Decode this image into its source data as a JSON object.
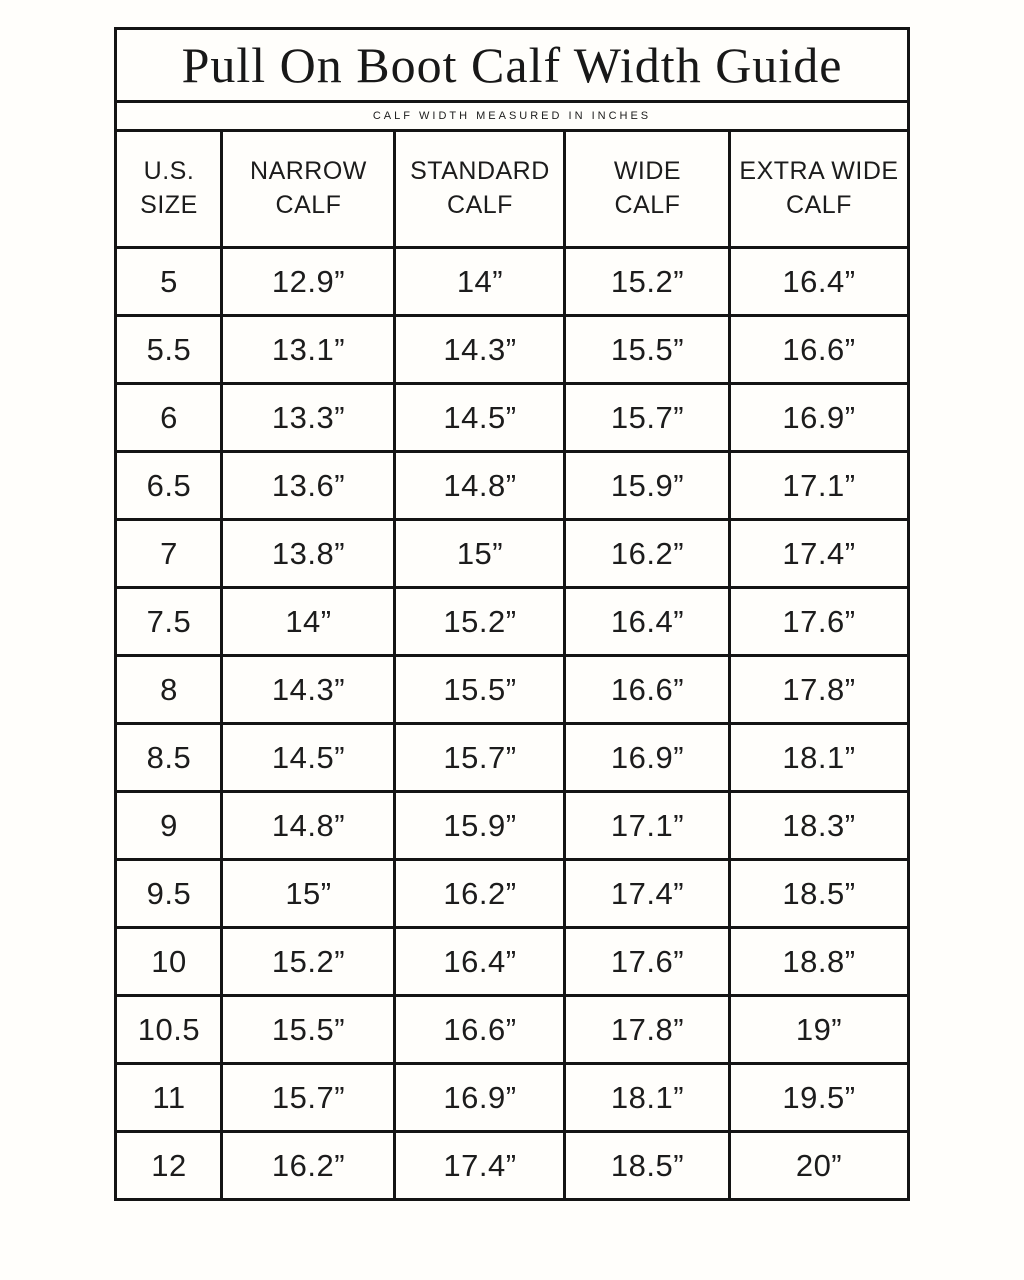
{
  "page": {
    "title": "Pull On Boot Calf Width Guide",
    "subtitle": "CALF WIDTH MEASURED IN INCHES"
  },
  "table": {
    "columns": [
      "U.S.\nSIZE",
      "NARROW\nCALF",
      "STANDARD\nCALF",
      "WIDE\nCALF",
      "EXTRA WIDE\nCALF"
    ],
    "rows": [
      {
        "size": "5",
        "values": [
          "12.9”",
          "14”",
          "15.2”",
          "16.4”"
        ]
      },
      {
        "size": "5.5",
        "values": [
          "13.1”",
          "14.3”",
          "15.5”",
          "16.6”"
        ]
      },
      {
        "size": "6",
        "values": [
          "13.3”",
          "14.5”",
          "15.7”",
          "16.9”"
        ]
      },
      {
        "size": "6.5",
        "values": [
          "13.6”",
          "14.8”",
          "15.9”",
          "17.1”"
        ]
      },
      {
        "size": "7",
        "values": [
          "13.8”",
          "15”",
          "16.2”",
          "17.4”"
        ]
      },
      {
        "size": "7.5",
        "values": [
          "14”",
          "15.2”",
          "16.4”",
          "17.6”"
        ]
      },
      {
        "size": "8",
        "values": [
          "14.3”",
          "15.5”",
          "16.6”",
          "17.8”"
        ]
      },
      {
        "size": "8.5",
        "values": [
          "14.5”",
          "15.7”",
          "16.9”",
          "18.1”"
        ]
      },
      {
        "size": "9",
        "values": [
          "14.8”",
          "15.9”",
          "17.1”",
          "18.3”"
        ]
      },
      {
        "size": "9.5",
        "values": [
          "15”",
          "16.2”",
          "17.4”",
          "18.5”"
        ]
      },
      {
        "size": "10",
        "values": [
          "15.2”",
          "16.4”",
          "17.6”",
          "18.8”"
        ]
      },
      {
        "size": "10.5",
        "values": [
          "15.5”",
          "16.6”",
          "17.8”",
          "19”"
        ]
      },
      {
        "size": "11",
        "values": [
          "15.7”",
          "16.9”",
          "18.1”",
          "19.5”"
        ]
      },
      {
        "size": "12",
        "values": [
          "16.2”",
          "17.4”",
          "18.5”",
          "20”"
        ]
      }
    ]
  },
  "colors": {
    "background": "#fffefb",
    "border": "#141414",
    "text": "#1c1c1c"
  }
}
